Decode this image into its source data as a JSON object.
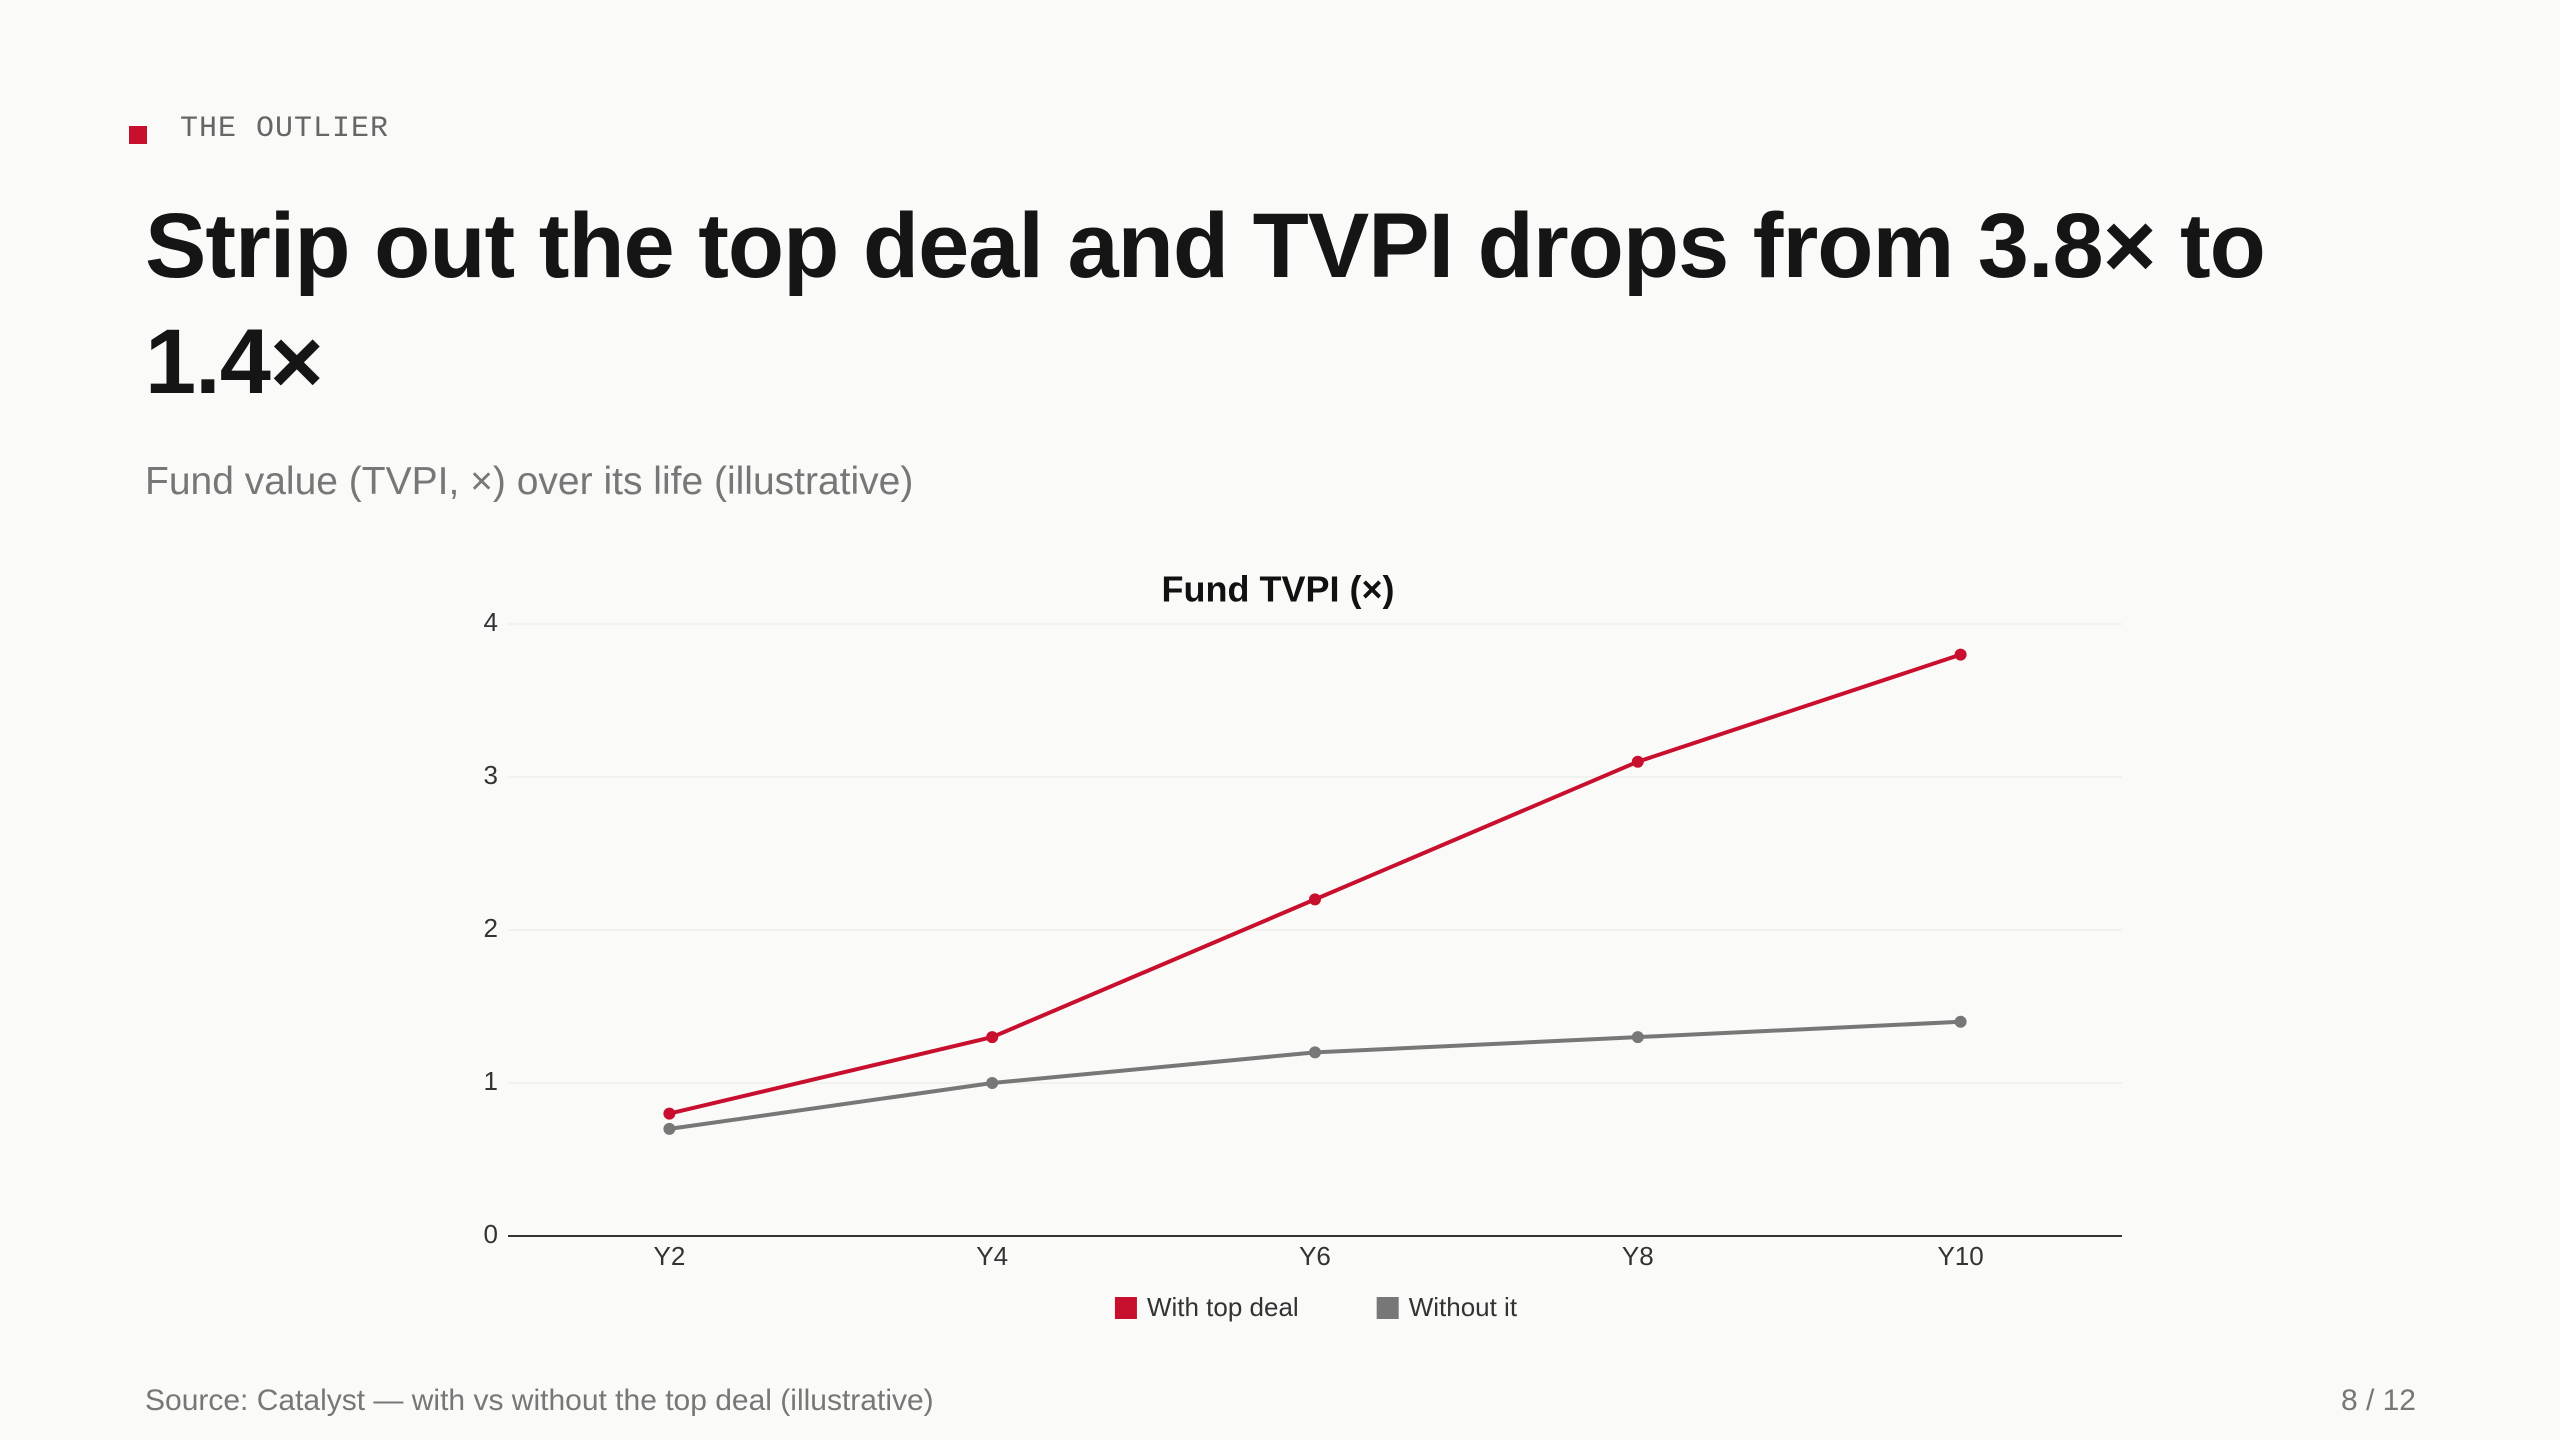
{
  "kicker": "THE OUTLIER",
  "headline": "Strip out the top deal and TVPI drops from 3.8× to 1.4×",
  "subtitle": "Fund value (TVPI, ×) over its life (illustrative)",
  "source": "Source: Catalyst — with vs without the top deal (illustrative)",
  "page": "8 / 12",
  "chart_data": {
    "type": "line",
    "title": "Fund TVPI (×)",
    "categories": [
      "Y2",
      "Y4",
      "Y6",
      "Y8",
      "Y10"
    ],
    "series": [
      {
        "name": "With top deal",
        "color": "#c8102e",
        "values": [
          0.8,
          1.3,
          2.2,
          3.1,
          3.8
        ]
      },
      {
        "name": "Without it",
        "color": "#777777",
        "values": [
          0.7,
          1.0,
          1.2,
          1.3,
          1.4
        ]
      }
    ],
    "ylim": [
      0,
      4
    ],
    "yticks": [
      0,
      1,
      2,
      3,
      4
    ],
    "grid": true,
    "legend": "bottom"
  }
}
